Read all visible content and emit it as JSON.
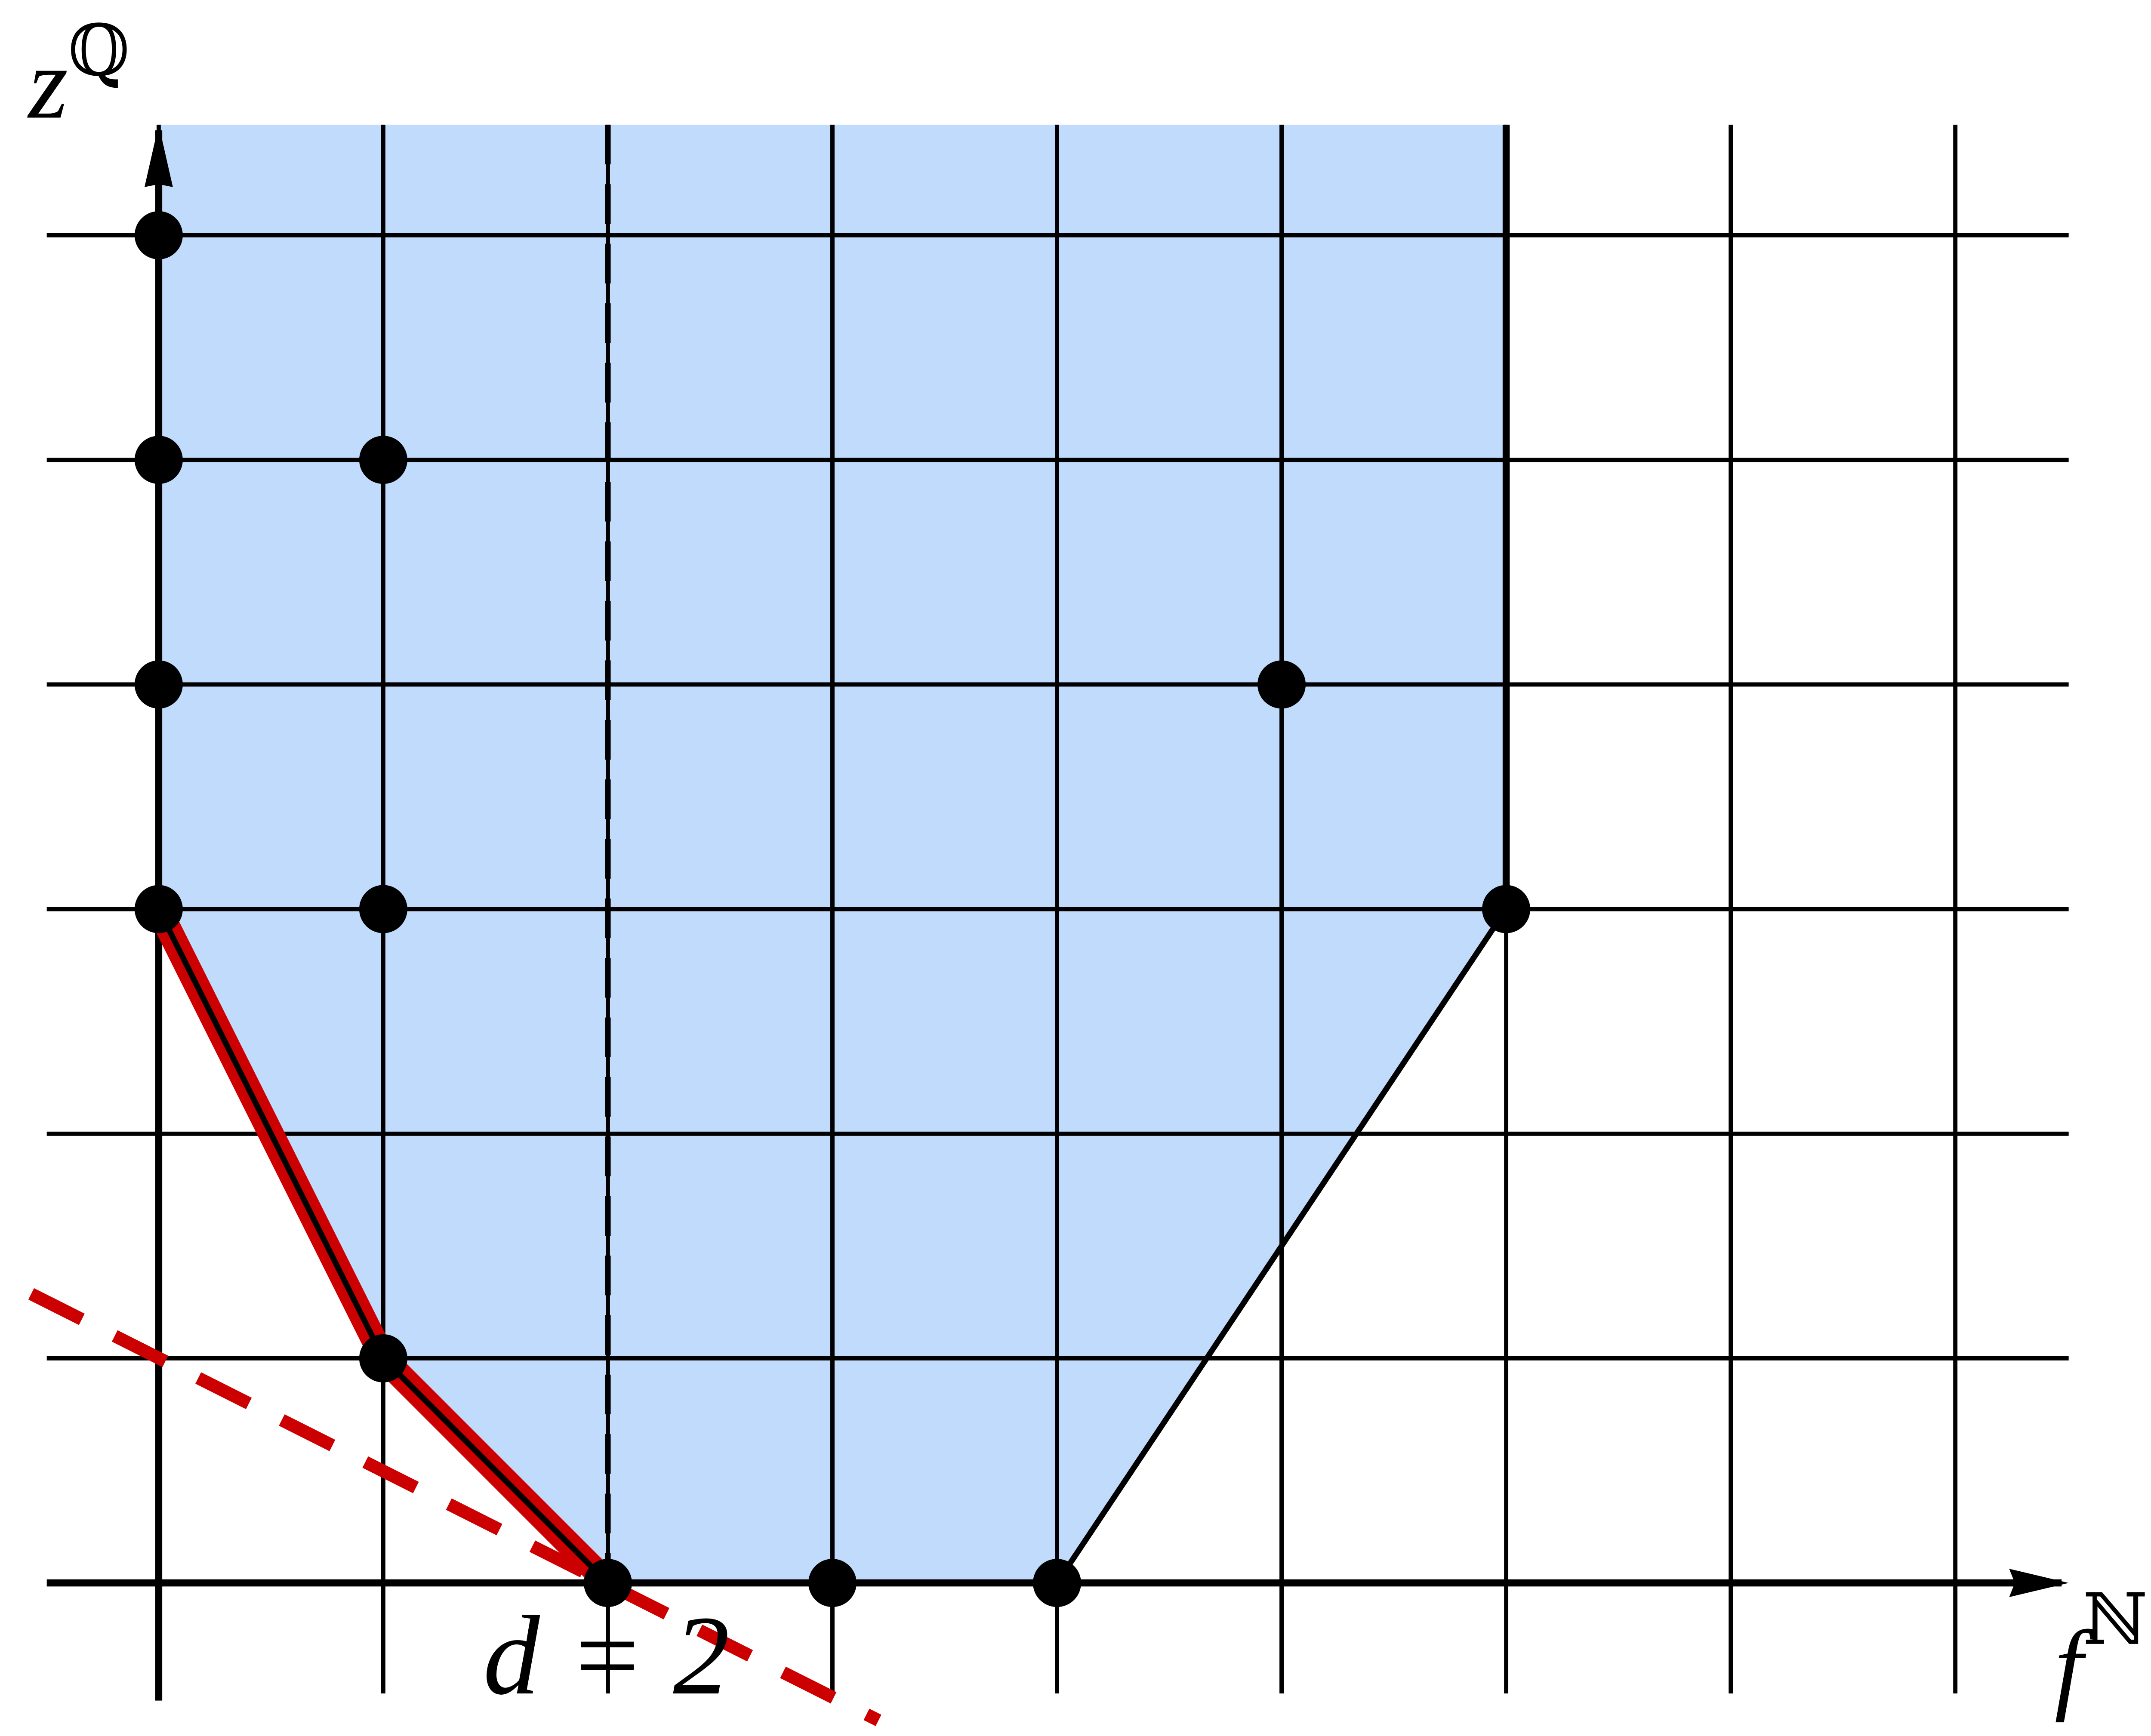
{
  "y_axis_label": {
    "base": "z",
    "superscript": "ℚ"
  },
  "x_axis_label": {
    "base": "f",
    "superscript": "ℕ"
  },
  "degree_label": "d = 2",
  "points": [
    [
      0,
      6
    ],
    [
      0,
      5
    ],
    [
      1,
      5
    ],
    [
      0,
      4
    ],
    [
      5,
      4
    ],
    [
      0,
      3
    ],
    [
      1,
      3
    ],
    [
      6,
      3
    ],
    [
      1,
      1
    ],
    [
      2,
      0
    ],
    [
      3,
      0
    ],
    [
      4,
      0
    ]
  ],
  "polygon_vertices": [
    [
      0,
      3
    ],
    [
      1,
      1
    ],
    [
      2,
      0
    ],
    [
      4,
      0
    ],
    [
      6,
      3
    ]
  ]
}
